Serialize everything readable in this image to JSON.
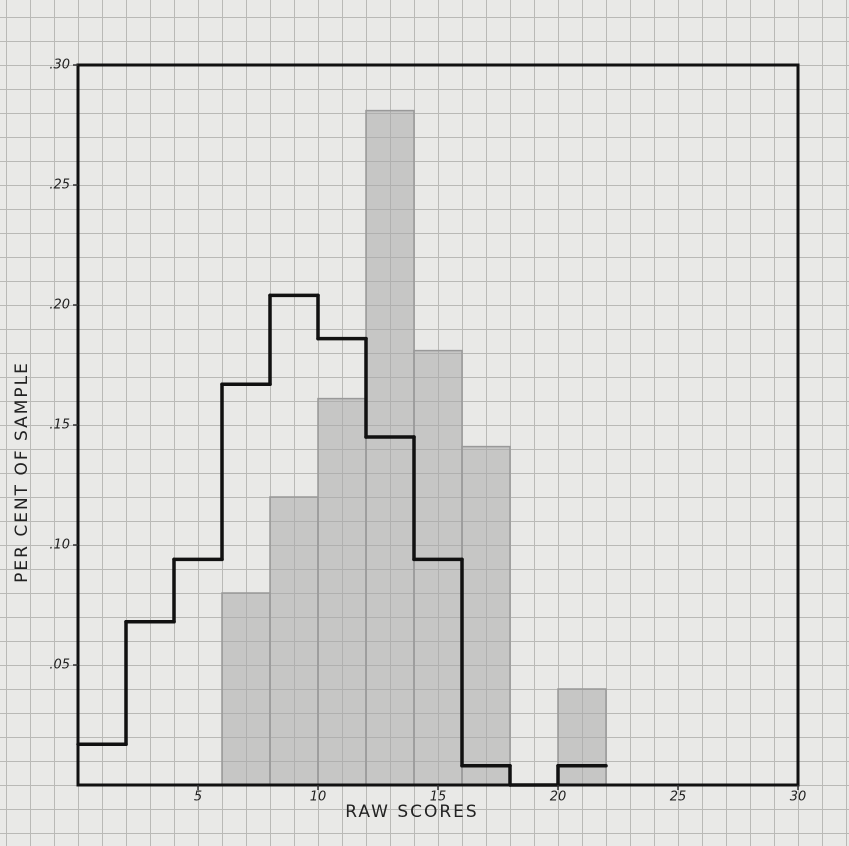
{
  "chart_data": {
    "type": "histogram",
    "xlabel": "RAW SCORES",
    "ylabel": "PER CENT OF SAMPLE",
    "xlim": [
      0,
      30
    ],
    "xticks": [
      5,
      10,
      15,
      20,
      25,
      30
    ],
    "ylim": [
      0,
      0.3
    ],
    "yticks": [
      {
        "value": 0.05,
        "label": ".05"
      },
      {
        "value": 0.1,
        "label": ".10"
      },
      {
        "value": 0.15,
        "label": ".15"
      },
      {
        "value": 0.2,
        "label": ".20"
      },
      {
        "value": 0.25,
        "label": ".25"
      },
      {
        "value": 0.3,
        "label": ".30"
      }
    ],
    "series": [
      {
        "style": "bar",
        "color": "#a9a9a9",
        "bins": [
          6,
          8,
          10,
          12,
          14,
          16,
          18,
          20,
          22
        ],
        "values": [
          0.08,
          0.12,
          0.161,
          0.281,
          0.181,
          0.141,
          0,
          0.04
        ]
      },
      {
        "style": "step",
        "color": "#111111",
        "bins": [
          0,
          2,
          4,
          6,
          8,
          10,
          12,
          14,
          16,
          18,
          20,
          22
        ],
        "values": [
          0.017,
          0.068,
          0.094,
          0.167,
          0.204,
          0.186,
          0.145,
          0.094,
          0.008,
          0,
          0.008
        ]
      }
    ]
  }
}
